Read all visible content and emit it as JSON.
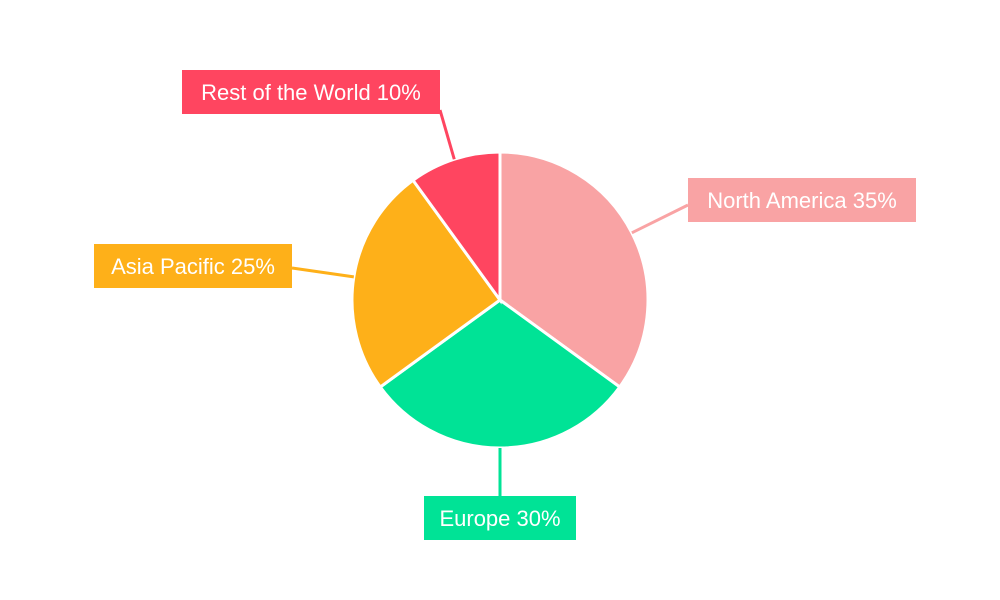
{
  "chart_data": {
    "type": "pie",
    "title": "",
    "start": "top",
    "direction": "clockwise",
    "labels": [
      "North America 35%",
      "Europe 30%",
      "Asia Pacific 25%",
      "Rest of the World 10%"
    ],
    "series": [
      {
        "name": "North America",
        "value": 35,
        "color": "#F9A3A4"
      },
      {
        "name": "Europe",
        "value": 30,
        "color": "#00E396"
      },
      {
        "name": "Asia Pacific",
        "value": 25,
        "color": "#FEB019"
      },
      {
        "name": "Rest of the World",
        "value": 10,
        "color": "#FF4560"
      }
    ],
    "legend": "none"
  }
}
